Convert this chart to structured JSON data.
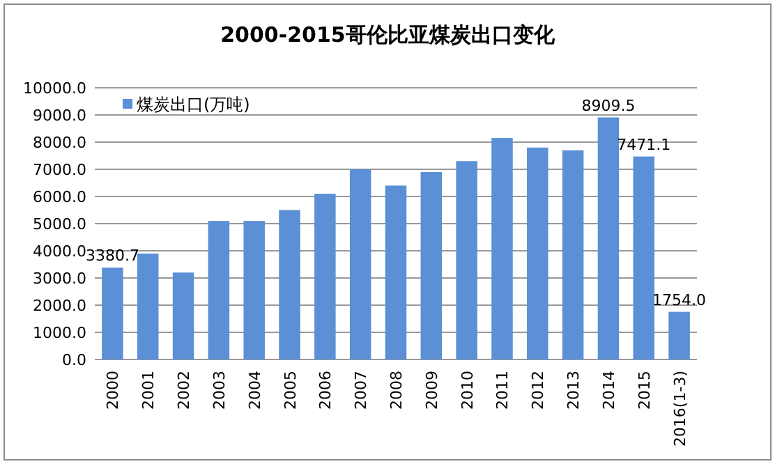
{
  "chart_data": {
    "type": "bar",
    "title": "2000-2015哥伦比亚煤炭出口变化",
    "categories": [
      "2000",
      "2001",
      "2002",
      "2003",
      "2004",
      "2005",
      "2006",
      "2007",
      "2008",
      "2009",
      "2010",
      "2011",
      "2012",
      "2013",
      "2014",
      "2015",
      "2016(1-3)"
    ],
    "series": [
      {
        "name": "煤炭出口(万吨)",
        "color": "#5b8fd6",
        "values": [
          3380.7,
          3900,
          3200,
          5100,
          5100,
          5500,
          6100,
          7000,
          6400,
          6900,
          7300,
          8150,
          7800,
          7700,
          8909.5,
          7471.1,
          1754.0
        ],
        "value_labels": [
          "3380.7",
          null,
          null,
          null,
          null,
          null,
          null,
          null,
          null,
          null,
          null,
          null,
          null,
          null,
          "8909.5",
          "7471.1",
          "1754.0"
        ]
      }
    ],
    "ylim": [
      0,
      10000
    ],
    "yticks": [
      {
        "value": 0,
        "label": "0.0"
      },
      {
        "value": 1000,
        "label": "1000.0"
      },
      {
        "value": 2000,
        "label": "2000.0"
      },
      {
        "value": 3000,
        "label": "3000.0"
      },
      {
        "value": 4000,
        "label": "4000.0"
      },
      {
        "value": 5000,
        "label": "5000.0"
      },
      {
        "value": 6000,
        "label": "6000.0"
      },
      {
        "value": 7000,
        "label": "7000.0"
      },
      {
        "value": 8000,
        "label": "8000.0"
      },
      {
        "value": 9000,
        "label": "9000.0"
      },
      {
        "value": 10000,
        "label": "10000.0"
      }
    ],
    "grid": "y",
    "legend": "top left"
  }
}
